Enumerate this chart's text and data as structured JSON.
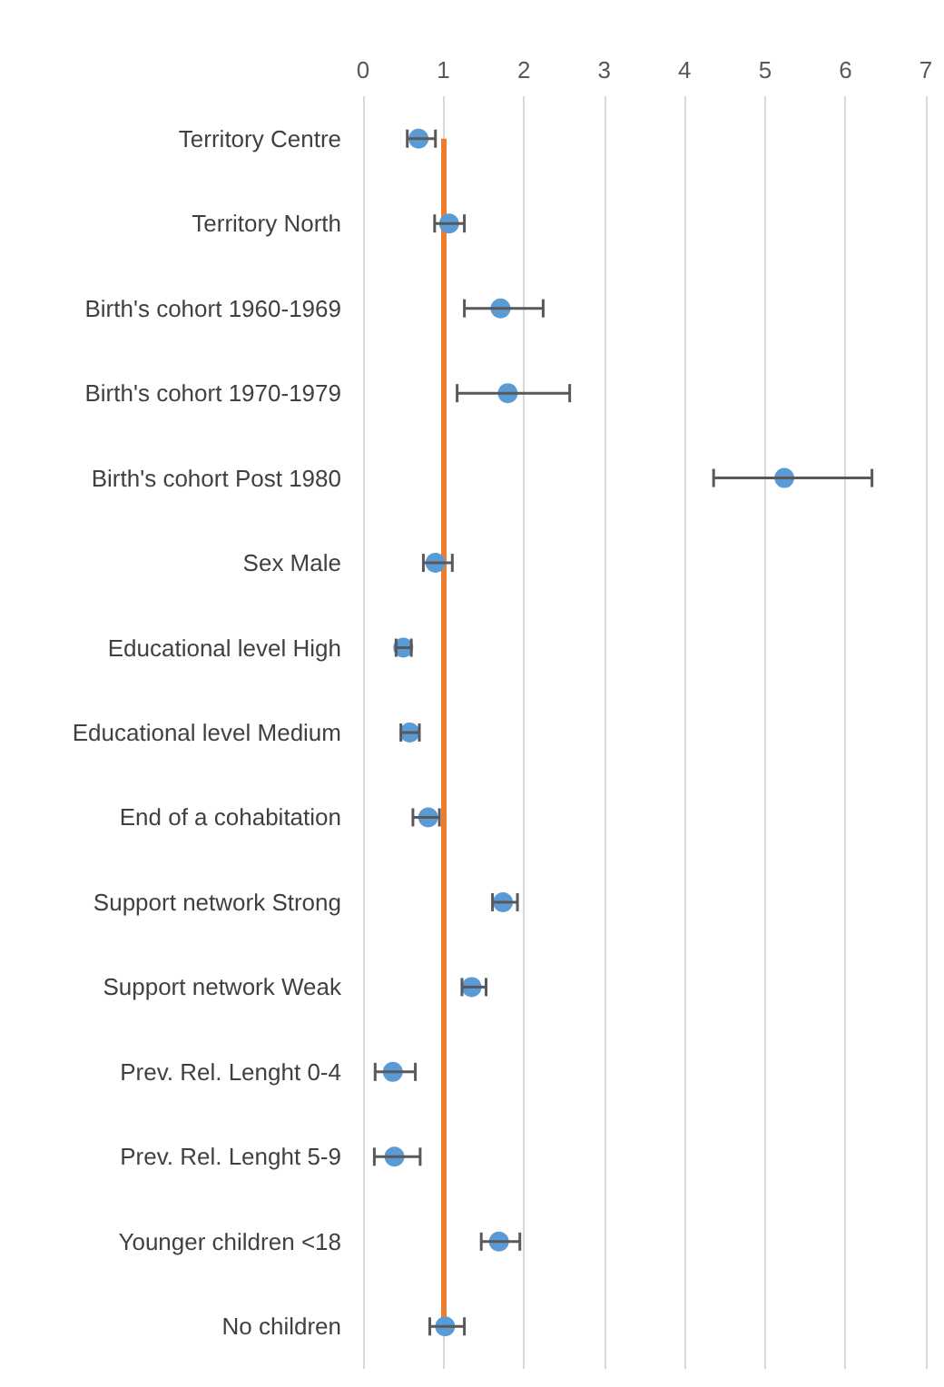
{
  "chart_data": {
    "type": "scatter",
    "orientation": "horizontal",
    "categories": [
      "Territory Centre",
      "Territory North",
      "Birth's cohort 1960-1969",
      "Birth's cohort 1970-1979",
      "Birth's cohort Post 1980",
      "Sex Male",
      "Educational level High",
      "Educational level Medium",
      "End of a cohabitation",
      "Support network Strong",
      "Support network Weak",
      "Prev. Rel. Lenght 0-4",
      "Prev. Rel. Lenght 5-9",
      "Younger children <18",
      "No children"
    ],
    "color": "#5b9bd5",
    "values": [
      0.69,
      1.07,
      1.71,
      1.8,
      5.24,
      0.9,
      0.5,
      0.58,
      0.81,
      1.74,
      1.35,
      0.37,
      0.39,
      1.69,
      1.02
    ],
    "errors": [
      [
        0.55,
        0.9
      ],
      [
        0.89,
        1.26
      ],
      [
        1.26,
        2.24
      ],
      [
        1.17,
        2.57
      ],
      [
        4.36,
        6.33
      ],
      [
        0.75,
        1.11
      ],
      [
        0.41,
        0.6
      ],
      [
        0.47,
        0.7
      ],
      [
        0.62,
        0.95
      ],
      [
        1.61,
        1.92
      ],
      [
        1.23,
        1.53
      ],
      [
        0.15,
        0.65
      ],
      [
        0.14,
        0.71
      ],
      [
        1.47,
        1.95
      ],
      [
        0.83,
        1.26
      ]
    ],
    "xlim": [
      0,
      7
    ],
    "xticks": [
      0,
      1,
      2,
      3,
      4,
      5,
      6,
      7
    ],
    "ref_lines": [
      {
        "axis": "x",
        "value": 1,
        "color": "#ed7d31"
      }
    ],
    "grid": "x",
    "marker": "circle"
  }
}
